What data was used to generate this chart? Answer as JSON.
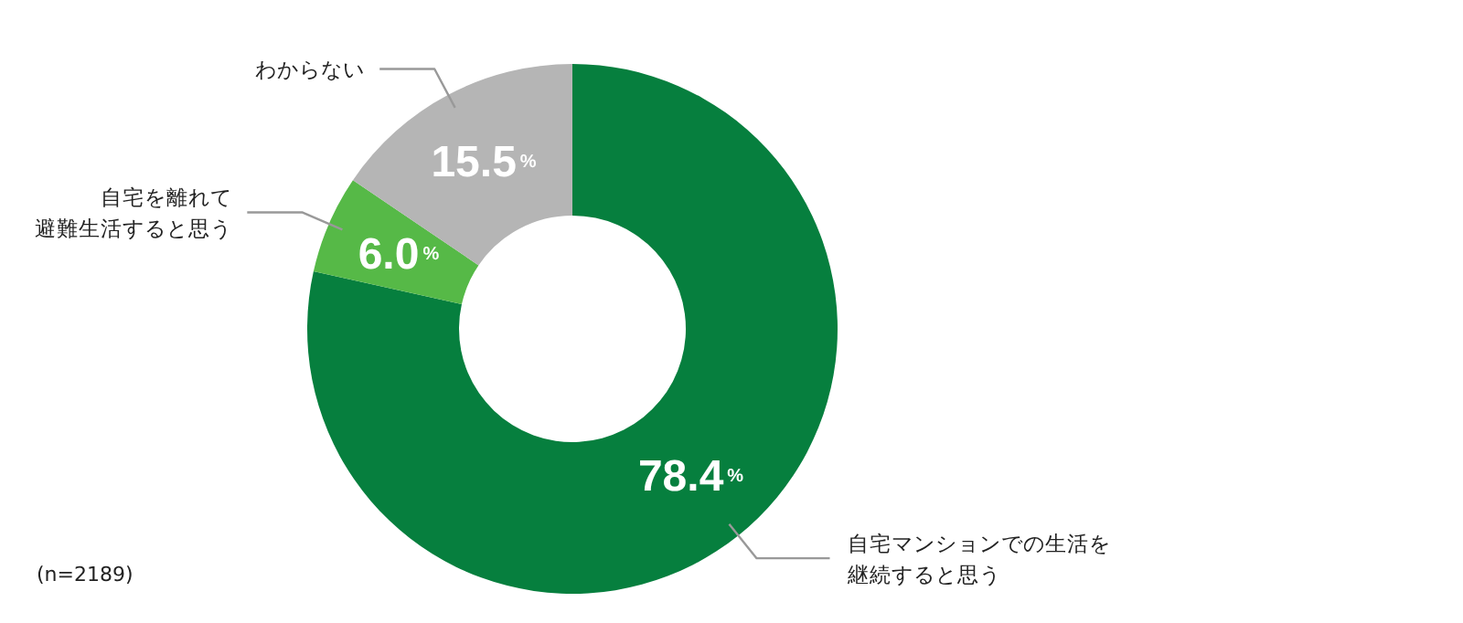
{
  "chart_data": {
    "type": "donut",
    "categories": [
      "自宅マンションでの生活を継続すると思う",
      "自宅を離れて避難生活すると思う",
      "わからない"
    ],
    "values": [
      78.4,
      6.0,
      15.5
    ],
    "value_labels": [
      "78.4%",
      "6.0%",
      "15.5%"
    ],
    "colors": [
      "#067f3e",
      "#56b947",
      "#b5b5b5"
    ],
    "legend": false,
    "annotations": [
      "(n=2189)"
    ]
  }
}
